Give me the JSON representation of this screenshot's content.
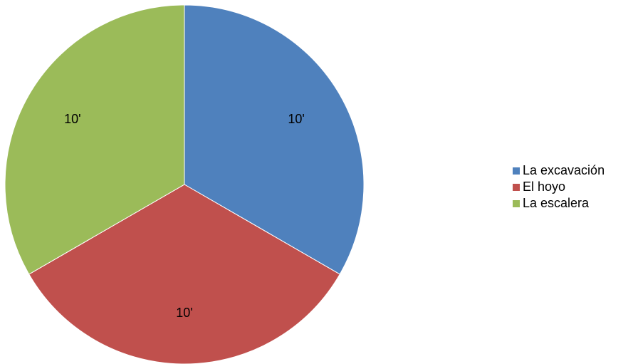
{
  "chart_data": {
    "type": "pie",
    "categories": [
      "La excavación",
      "El hoyo",
      "La escalera"
    ],
    "values": [
      10,
      10,
      10
    ],
    "value_labels": [
      "10'",
      "10'",
      "10'"
    ],
    "colors": [
      "#4f81bd",
      "#c0504d",
      "#9bbb59"
    ],
    "legend": "right"
  }
}
